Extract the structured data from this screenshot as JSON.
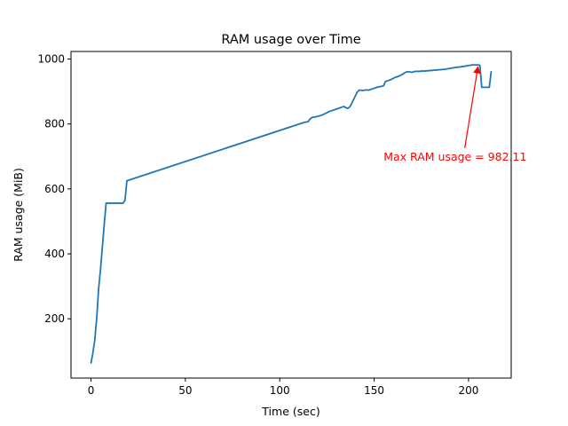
{
  "chart_data": {
    "type": "line",
    "title": "RAM usage over Time",
    "xlabel": "Time (sec)",
    "ylabel": "RAM usage (MiB)",
    "xlim": [
      -10.6,
      222.6
    ],
    "ylim": [
      17.4,
      1023.3
    ],
    "x_ticks": [
      0,
      50,
      100,
      150,
      200
    ],
    "y_ticks": [
      200,
      400,
      600,
      800,
      1000
    ],
    "grid": false,
    "line_color": "#1f77b4",
    "series": [
      {
        "x": [
          0,
          1,
          2,
          3,
          4,
          5,
          6,
          7,
          8,
          9,
          10,
          11,
          12,
          13,
          14,
          15,
          16,
          17,
          18,
          19,
          20,
          113,
          114,
          115,
          116,
          117,
          118,
          119,
          120,
          121,
          122,
          123,
          124,
          125,
          126,
          127,
          128,
          129,
          130,
          131,
          132,
          133,
          134,
          135,
          136,
          137,
          138,
          139,
          140,
          141,
          142,
          143,
          144,
          145,
          146,
          147,
          148,
          149,
          150,
          151,
          152,
          153,
          154,
          155,
          156,
          157,
          158,
          159,
          160,
          161,
          162,
          163,
          164,
          165,
          166,
          167,
          168,
          169,
          170,
          171,
          172,
          173,
          174,
          175,
          176,
          177,
          178,
          179,
          180,
          181,
          182,
          183,
          184,
          185,
          186,
          187,
          188,
          189,
          190,
          191,
          192,
          193,
          194,
          195,
          196,
          197,
          198,
          199,
          200,
          201,
          202,
          203,
          204,
          205,
          206,
          207,
          208,
          209,
          210,
          211,
          212
        ],
        "y": [
          64,
          95,
          135,
          200,
          290,
          350,
          420,
          490,
          556,
          556,
          556,
          556,
          556,
          556,
          556,
          556,
          556,
          556,
          565,
          625,
          627,
          805,
          806,
          807,
          815,
          820,
          821,
          822,
          823,
          825,
          827,
          829,
          832,
          835,
          838,
          840,
          842,
          844,
          846,
          848,
          850,
          852,
          854,
          850,
          848,
          852,
          862,
          874,
          886,
          898,
          904,
          904,
          903,
          904,
          905,
          904,
          906,
          908,
          910,
          912,
          914,
          915,
          916,
          918,
          931,
          933,
          935,
          937,
          940,
          943,
          945,
          947,
          950,
          953,
          957,
          960,
          961,
          960,
          959,
          961,
          962,
          962,
          962,
          963,
          963,
          963,
          964,
          964,
          965,
          965,
          966,
          966,
          967,
          967,
          968,
          968,
          969,
          970,
          971,
          972,
          973,
          974,
          975,
          975,
          976,
          977,
          978,
          979,
          980,
          981,
          982,
          982,
          982,
          982,
          981,
          913,
          913,
          913,
          913,
          913,
          961
        ]
      }
    ],
    "annotation": {
      "text": "Max RAM usage = 982.11",
      "color": "#ff0000",
      "point": [
        205,
        982.11
      ],
      "text_at": [
        155,
        687
      ]
    }
  }
}
